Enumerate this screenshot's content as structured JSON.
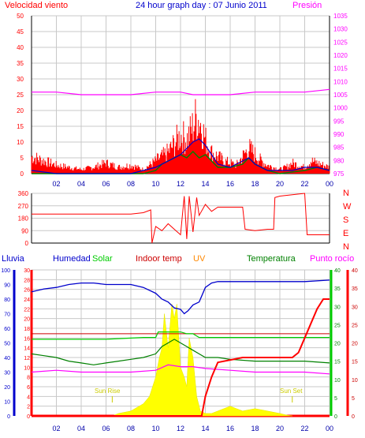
{
  "chart_data": [
    {
      "type": "line",
      "title": "24 hour graph day : 07 Junio 2011",
      "left_label": "Velocidad viento",
      "right_label": "Presión",
      "x_ticks": [
        "02",
        "04",
        "06",
        "08",
        "10",
        "12",
        "14",
        "16",
        "18",
        "20",
        "22",
        "00"
      ],
      "y_left_ticks": [
        "0",
        "5",
        "10",
        "15",
        "20",
        "25",
        "30",
        "35",
        "40",
        "45",
        "50"
      ],
      "y_right_ticks": [
        "975",
        "980",
        "985",
        "990",
        "995",
        "1000",
        "1005",
        "1010",
        "1015",
        "1020",
        "1025",
        "1030",
        "1035"
      ],
      "ylim_left": [
        0,
        50
      ],
      "ylim_right": [
        975,
        1035
      ],
      "colors": {
        "wind": "#ff0000",
        "avg": "#0000cc",
        "dir_avg": "#008000",
        "pressure": "#ff00ff",
        "grid": "#c0c0c0",
        "title": "#0000cc"
      },
      "series": [
        {
          "name": "",
          "values_x": [
            0,
            2,
            4,
            6,
            8,
            10,
            12,
            13,
            14,
            16,
            18,
            20,
            22,
            24
          ],
          "values": [
            1006,
            1006,
            1005,
            1005,
            1005,
            1006,
            1006,
            1005,
            1005,
            1005,
            1006,
            1006,
            1006,
            1007
          ]
        }
      ],
      "wind_gust_envelope": {
        "x": [
          0,
          1,
          2,
          3,
          4,
          5,
          6,
          7,
          8,
          9,
          10,
          10.5,
          11,
          11.5,
          12,
          12.5,
          13,
          13.3,
          13.6,
          14,
          14.5,
          15,
          15.5,
          16,
          16.5,
          17,
          17.5,
          18,
          18.5,
          19,
          19.5,
          20,
          20.5,
          21,
          21.5,
          22,
          22.5,
          23,
          23.5,
          24
        ],
        "y": [
          8,
          6,
          4,
          3,
          2,
          3,
          5,
          3,
          4,
          2,
          6,
          8,
          10,
          14,
          18,
          16,
          22,
          27,
          24,
          16,
          10,
          8,
          6,
          5,
          4,
          8,
          12,
          9,
          6,
          4,
          3,
          2,
          3,
          5,
          4,
          3,
          6,
          5,
          4,
          3
        ]
      },
      "wind_avg": {
        "x": [
          0,
          2,
          4,
          6,
          8,
          9,
          10,
          11,
          12,
          12.5,
          13,
          13.5,
          14,
          14.5,
          15,
          16,
          17,
          17.5,
          18,
          19,
          20,
          21,
          22,
          23,
          24
        ],
        "y": [
          1,
          0,
          0,
          0,
          0,
          1,
          2,
          4,
          6,
          8,
          10,
          11,
          9,
          6,
          3,
          2,
          4,
          5,
          3,
          1,
          1,
          1,
          2,
          2,
          1
        ]
      },
      "wind_dir_avg": {
        "x": [
          0,
          2,
          4,
          6,
          8,
          9,
          10,
          10.5,
          11,
          11.5,
          12,
          12.5,
          13,
          13.5,
          14,
          14.5,
          15,
          16,
          17,
          17.5,
          18,
          19,
          20,
          22,
          23,
          24
        ],
        "y": [
          0,
          0,
          0,
          0,
          0,
          0,
          1,
          3,
          4,
          5,
          6,
          5,
          7,
          5,
          6,
          4,
          2,
          2,
          3,
          5,
          3,
          1,
          0,
          1,
          2,
          1
        ]
      }
    },
    {
      "type": "line",
      "y_left_ticks": [
        "0",
        "90",
        "180",
        "270",
        "360"
      ],
      "ylim": [
        0,
        360
      ],
      "right_labels": [
        "N",
        "W",
        "S",
        "E",
        "N"
      ],
      "x_ticks": [
        "02",
        "04",
        "06",
        "08",
        "10",
        "12",
        "14",
        "16",
        "18",
        "20",
        "22",
        "00"
      ],
      "series": [
        {
          "name": "",
          "x": [
            0,
            2,
            4,
            6,
            8,
            9,
            9.6,
            9.7,
            10,
            10.5,
            11,
            11.5,
            12,
            12.3,
            12.5,
            12.7,
            13,
            13.3,
            13.5,
            14,
            14.5,
            15,
            16,
            17,
            17.2,
            18,
            19,
            19.5,
            19.6,
            20,
            21,
            22,
            22.2,
            23,
            24
          ],
          "y": [
            210,
            210,
            210,
            210,
            210,
            220,
            240,
            0,
            120,
            90,
            140,
            100,
            60,
            340,
            30,
            340,
            80,
            330,
            200,
            280,
            230,
            260,
            260,
            260,
            100,
            90,
            100,
            100,
            330,
            340,
            350,
            360,
            60,
            60,
            60
          ]
        }
      ]
    },
    {
      "type": "line",
      "labels": {
        "rain": "Lluvia",
        "humidity": "Humedad",
        "solar": "Solar",
        "indoor": "Indoor temp",
        "uv": "UV",
        "temperature": "Temperatura",
        "dewpoint": "Punto rocío"
      },
      "annotations": {
        "sunrise": "Sun Rise",
        "sunset": "Sun Set"
      },
      "y_ticks_humidity": [
        "0",
        "10",
        "20",
        "30",
        "40",
        "50",
        "60",
        "70",
        "80",
        "90",
        "100"
      ],
      "y_ticks_rain": [
        "0",
        "2",
        "4",
        "6",
        "8",
        "10",
        "12",
        "14",
        "16",
        "18",
        "20",
        "22",
        "24",
        "26",
        "28",
        "30"
      ],
      "y_ticks_temp": [
        "0",
        "5",
        "10",
        "15",
        "20",
        "25",
        "30",
        "35",
        "40"
      ],
      "x_ticks": [
        "02",
        "04",
        "06",
        "08",
        "10",
        "12",
        "14",
        "16",
        "18",
        "20",
        "22",
        "00"
      ],
      "humidity": {
        "x": [
          0,
          1,
          2,
          3,
          4,
          5,
          6,
          7,
          8,
          9,
          10,
          10.5,
          11,
          11.5,
          12,
          12.3,
          12.6,
          13,
          13.5,
          14,
          14.5,
          15,
          16,
          18,
          20,
          22,
          24
        ],
        "y": [
          85,
          87,
          88,
          90,
          91,
          91,
          90,
          90,
          90,
          88,
          84,
          80,
          78,
          74,
          73,
          70,
          72,
          76,
          78,
          88,
          91,
          92,
          92,
          92,
          92,
          92,
          93
        ]
      },
      "solar": {
        "x": [
          0,
          6,
          9,
          10,
          10.2,
          11,
          11.5,
          12,
          12.5,
          13,
          13.5,
          14,
          16,
          18,
          20,
          22,
          24
        ],
        "y": [
          21,
          21,
          21.5,
          21.5,
          23,
          23,
          23,
          23,
          22.5,
          22.5,
          21.5,
          21.5,
          21.5,
          21.5,
          21.5,
          21.5,
          21.5
        ]
      },
      "indoor": {
        "x": [
          0,
          24
        ],
        "y": [
          22.5,
          22.5
        ]
      },
      "temperature": {
        "x": [
          0,
          1,
          2,
          3,
          4,
          5,
          6,
          7,
          8,
          9,
          10,
          10.5,
          11,
          11.5,
          12,
          12.5,
          13,
          13.5,
          14,
          15,
          16,
          18,
          20,
          22,
          24
        ],
        "y": [
          17,
          16.5,
          16,
          15,
          14.5,
          14,
          14.5,
          15,
          15.5,
          16,
          17,
          19,
          20,
          21,
          20,
          19,
          18,
          17,
          16,
          16,
          15.5,
          15,
          15,
          15,
          14.5
        ]
      },
      "dewpoint": {
        "x": [
          0,
          2,
          4,
          6,
          8,
          10,
          11,
          12,
          13,
          14,
          16,
          18,
          20,
          22,
          24
        ],
        "y": [
          12,
          12.5,
          12,
          12,
          12,
          12.5,
          14,
          13.5,
          13.5,
          13,
          12.5,
          12,
          12,
          12,
          11.5
        ]
      },
      "rain": {
        "x": [
          0,
          13.7,
          14,
          14.5,
          15,
          16,
          17,
          18,
          19,
          20,
          21,
          21.5,
          22,
          22.5,
          23,
          23.5,
          24
        ],
        "y": [
          0,
          0,
          4,
          8,
          11,
          11.5,
          12,
          12,
          12,
          12,
          12,
          13,
          16,
          19,
          22,
          24,
          24
        ]
      },
      "solar_fill": {
        "x": [
          6.5,
          7,
          8,
          9,
          9.5,
          10,
          10.3,
          10.5,
          10.7,
          11,
          11.3,
          11.5,
          11.7,
          12,
          12.3,
          12.5,
          12.7,
          13,
          13.3,
          13.6,
          14,
          14.5,
          15,
          16,
          16.5,
          17,
          18,
          19,
          20,
          20.5,
          21
        ],
        "y": [
          0,
          0.5,
          1,
          2.5,
          4,
          8,
          12,
          14,
          21,
          14,
          23,
          20,
          23,
          10,
          8,
          6,
          16,
          12,
          4,
          1,
          0.5,
          0.5,
          1,
          2,
          1.5,
          1,
          1.5,
          1,
          0.5,
          0.2,
          0
        ]
      }
    }
  ]
}
